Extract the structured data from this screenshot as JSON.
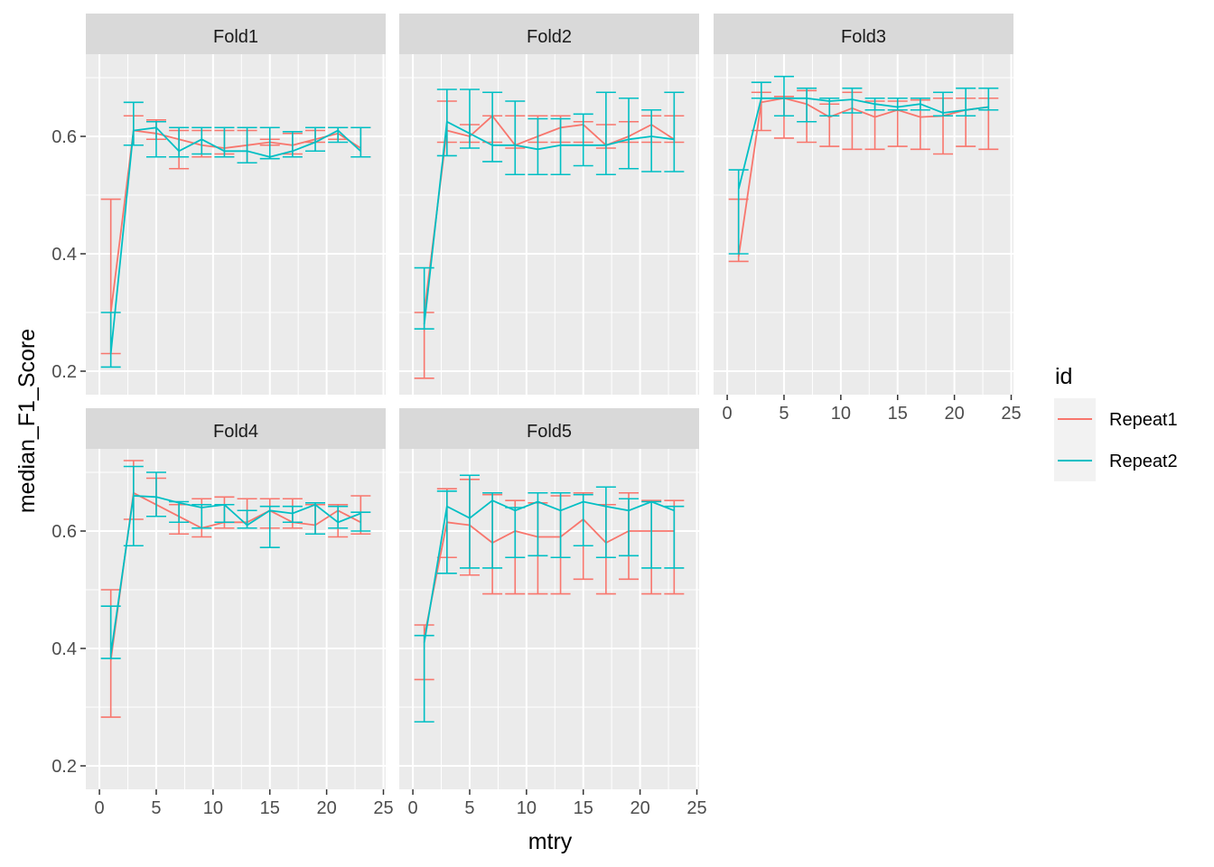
{
  "chart_data": {
    "type": "line",
    "xlabel": "mtry",
    "ylabel": "median_F1_Score",
    "xlim": [
      -1.2,
      25.2
    ],
    "ylim": [
      0.16,
      0.74
    ],
    "x_ticks": [
      0,
      5,
      10,
      15,
      20,
      25
    ],
    "y_ticks": [
      0.2,
      0.4,
      0.6
    ],
    "x_tick_labels": [
      "0",
      "5",
      "10",
      "15",
      "20",
      "25"
    ],
    "y_tick_labels": [
      "0.2",
      "0.4",
      "0.6"
    ],
    "grid": true,
    "legend": {
      "title": "id",
      "position": "right",
      "entries": [
        "Repeat1",
        "Repeat2"
      ]
    },
    "colors": {
      "Repeat1": "#F8766D",
      "Repeat2": "#00BFC4"
    },
    "x": [
      1,
      3,
      5,
      7,
      9,
      11,
      13,
      15,
      17,
      19,
      21,
      23
    ],
    "panels": [
      {
        "label": "Fold1",
        "series": [
          {
            "name": "Repeat1",
            "y": [
              0.3,
              0.61,
              0.605,
              0.595,
              0.585,
              0.58,
              0.585,
              0.59,
              0.585,
              0.595,
              0.605,
              0.58
            ],
            "ymin": [
              0.23,
              0.585,
              0.595,
              0.545,
              0.565,
              0.57,
              0.555,
              0.585,
              0.57,
              0.59,
              0.595,
              0.565
            ],
            "ymax": [
              0.493,
              0.635,
              0.628,
              0.61,
              0.61,
              0.61,
              0.61,
              0.595,
              0.605,
              0.61,
              0.615,
              0.615
            ]
          },
          {
            "name": "Repeat2",
            "y": [
              0.23,
              0.61,
              0.615,
              0.575,
              0.595,
              0.575,
              0.575,
              0.565,
              0.575,
              0.59,
              0.61,
              0.575
            ],
            "ymin": [
              0.207,
              0.585,
              0.565,
              0.565,
              0.57,
              0.565,
              0.555,
              0.562,
              0.565,
              0.575,
              0.59,
              0.565
            ],
            "ymax": [
              0.3,
              0.658,
              0.625,
              0.615,
              0.615,
              0.615,
              0.615,
              0.615,
              0.608,
              0.615,
              0.615,
              0.615
            ]
          }
        ]
      },
      {
        "label": "Fold2",
        "series": [
          {
            "name": "Repeat1",
            "y": [
              0.3,
              0.61,
              0.6,
              0.635,
              0.585,
              0.6,
              0.615,
              0.62,
              0.585,
              0.6,
              0.62,
              0.595
            ],
            "ymin": [
              0.188,
              0.59,
              0.59,
              0.59,
              0.58,
              0.59,
              0.59,
              0.59,
              0.58,
              0.59,
              0.59,
              0.59
            ],
            "ymax": [
              0.3,
              0.66,
              0.62,
              0.635,
              0.635,
              0.635,
              0.635,
              0.625,
              0.62,
              0.625,
              0.635,
              0.635
            ]
          },
          {
            "name": "Repeat2",
            "y": [
              0.28,
              0.625,
              0.605,
              0.585,
              0.585,
              0.578,
              0.585,
              0.585,
              0.585,
              0.595,
              0.6,
              0.595
            ],
            "ymin": [
              0.272,
              0.567,
              0.58,
              0.557,
              0.535,
              0.535,
              0.535,
              0.55,
              0.535,
              0.545,
              0.54,
              0.54
            ],
            "ymax": [
              0.376,
              0.68,
              0.68,
              0.675,
              0.66,
              0.63,
              0.63,
              0.638,
              0.675,
              0.665,
              0.645,
              0.675
            ]
          }
        ]
      },
      {
        "label": "Fold3",
        "series": [
          {
            "name": "Repeat1",
            "y": [
              0.395,
              0.658,
              0.665,
              0.655,
              0.633,
              0.648,
              0.633,
              0.645,
              0.633,
              0.635,
              0.645,
              0.65
            ],
            "ymin": [
              0.387,
              0.61,
              0.597,
              0.59,
              0.583,
              0.578,
              0.578,
              0.583,
              0.578,
              0.57,
              0.583,
              0.578
            ],
            "ymax": [
              0.493,
              0.675,
              0.668,
              0.678,
              0.655,
              0.675,
              0.66,
              0.66,
              0.662,
              0.665,
              0.665,
              0.665
            ]
          },
          {
            "name": "Repeat2",
            "y": [
              0.51,
              0.665,
              0.665,
              0.665,
              0.66,
              0.663,
              0.655,
              0.65,
              0.655,
              0.64,
              0.645,
              0.65
            ],
            "ymin": [
              0.4,
              0.665,
              0.635,
              0.625,
              0.635,
              0.64,
              0.645,
              0.645,
              0.645,
              0.635,
              0.635,
              0.645
            ],
            "ymax": [
              0.543,
              0.692,
              0.702,
              0.682,
              0.665,
              0.682,
              0.665,
              0.665,
              0.665,
              0.675,
              0.682,
              0.682
            ]
          }
        ]
      },
      {
        "label": "Fold4",
        "series": [
          {
            "name": "Repeat1",
            "y": [
              0.38,
              0.665,
              0.645,
              0.625,
              0.605,
              0.615,
              0.615,
              0.635,
              0.615,
              0.61,
              0.635,
              0.615
            ],
            "ymin": [
              0.283,
              0.62,
              0.625,
              0.595,
              0.59,
              0.605,
              0.605,
              0.605,
              0.605,
              0.595,
              0.59,
              0.595
            ],
            "ymax": [
              0.5,
              0.72,
              0.69,
              0.645,
              0.655,
              0.658,
              0.655,
              0.655,
              0.655,
              0.645,
              0.645,
              0.66
            ]
          },
          {
            "name": "Repeat2",
            "y": [
              0.39,
              0.66,
              0.658,
              0.648,
              0.64,
              0.645,
              0.61,
              0.635,
              0.63,
              0.645,
              0.615,
              0.63
            ],
            "ymin": [
              0.383,
              0.575,
              0.625,
              0.615,
              0.605,
              0.615,
              0.605,
              0.572,
              0.615,
              0.595,
              0.605,
              0.6
            ],
            "ymax": [
              0.472,
              0.71,
              0.7,
              0.65,
              0.645,
              0.645,
              0.635,
              0.642,
              0.642,
              0.648,
              0.642,
              0.632
            ]
          }
        ]
      },
      {
        "label": "Fold5",
        "series": [
          {
            "name": "Repeat1",
            "y": [
              0.42,
              0.615,
              0.61,
              0.58,
              0.6,
              0.59,
              0.59,
              0.62,
              0.58,
              0.6,
              0.6,
              0.6
            ],
            "ymin": [
              0.347,
              0.555,
              0.525,
              0.493,
              0.493,
              0.493,
              0.493,
              0.518,
              0.493,
              0.518,
              0.493,
              0.493
            ],
            "ymax": [
              0.44,
              0.672,
              0.688,
              0.662,
              0.652,
              0.648,
              0.66,
              0.665,
              0.645,
              0.665,
              0.652,
              0.652
            ]
          },
          {
            "name": "Repeat2",
            "y": [
              0.41,
              0.642,
              0.622,
              0.652,
              0.635,
              0.65,
              0.635,
              0.65,
              0.642,
              0.635,
              0.65,
              0.635
            ],
            "ymin": [
              0.275,
              0.528,
              0.537,
              0.537,
              0.555,
              0.558,
              0.555,
              0.575,
              0.555,
              0.558,
              0.537,
              0.537
            ],
            "ymax": [
              0.422,
              0.668,
              0.695,
              0.665,
              0.64,
              0.665,
              0.665,
              0.662,
              0.675,
              0.655,
              0.65,
              0.642
            ]
          }
        ]
      }
    ]
  }
}
